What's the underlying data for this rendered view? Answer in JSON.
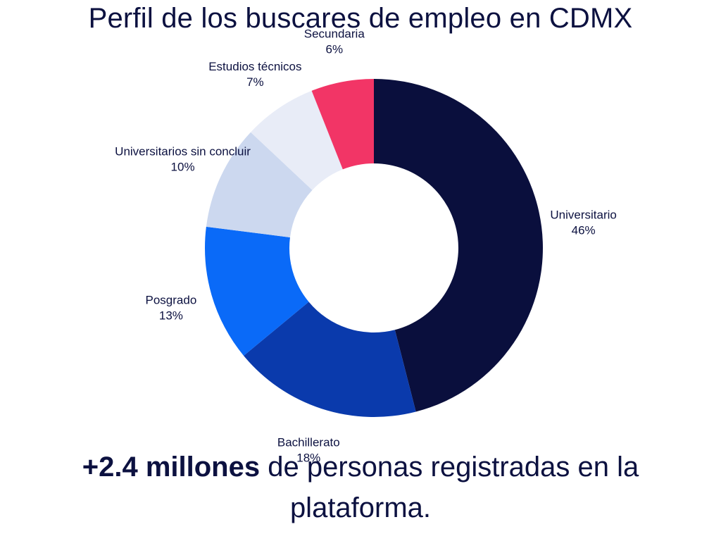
{
  "title": "Perfil de los buscares de empleo en CDMX",
  "footer": {
    "highlight": "+2.4 millones",
    "text": "de personas registradas en la plataforma."
  },
  "chart_data": {
    "type": "pie",
    "donut": true,
    "categories": [
      "Universitario",
      "Bachillerato",
      "Posgrado",
      "Universitarios sin concluir",
      "Estudios técnicos",
      "Secundaria"
    ],
    "values": [
      46,
      18,
      13,
      10,
      7,
      6
    ],
    "value_labels": [
      "46%",
      "18%",
      "13%",
      "10%",
      "7%",
      "6%"
    ],
    "colors": [
      "#0a0f3d",
      "#0a3aac",
      "#0a6af8",
      "#ccd8ef",
      "#e8ecf7",
      "#f23566"
    ],
    "legend": "none"
  }
}
